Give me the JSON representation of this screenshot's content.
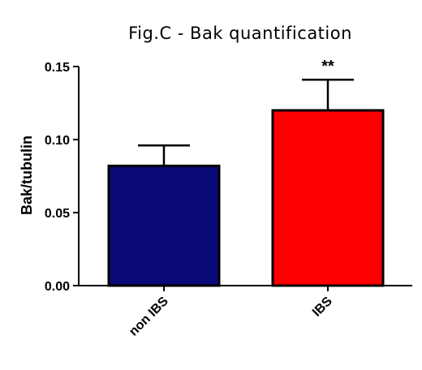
{
  "chart_data": {
    "type": "bar",
    "title": "Fig.C - Bak quantification",
    "xlabel": "",
    "ylabel": "Bak/tubulin",
    "categories": [
      "non IBS",
      "IBS"
    ],
    "values": [
      0.082,
      0.12
    ],
    "error_upper": [
      0.096,
      0.141
    ],
    "colors": [
      "#0a0a78",
      "#ff0000"
    ],
    "annotations": [
      {
        "category": "IBS",
        "text": "**"
      }
    ],
    "yticks": [
      "0.00",
      "0.05",
      "0.10",
      "0.15"
    ],
    "ylim": [
      0,
      0.15
    ],
    "grid": false,
    "legend": "none"
  }
}
